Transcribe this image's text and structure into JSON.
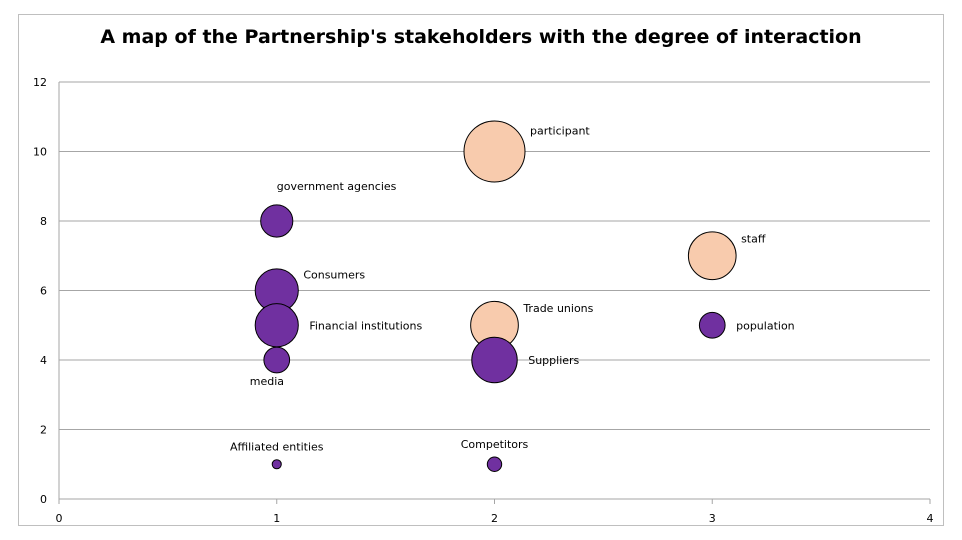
{
  "chart_data": {
    "type": "scatter",
    "variant": "bubble",
    "title": "A map of the Partnership's stakeholders with the degree of interaction",
    "xlabel": "",
    "ylabel": "",
    "xlim": [
      0,
      4
    ],
    "ylim": [
      0,
      12
    ],
    "x_ticks": [
      0,
      1,
      2,
      3,
      4
    ],
    "y_ticks": [
      0,
      2,
      4,
      6,
      8,
      10,
      12
    ],
    "grid": "horizontal",
    "legend": "none",
    "colors": {
      "purple": "#7030a0",
      "peach": "#f8cbad",
      "outline": "#000000",
      "gridline": "#a6a6a6"
    },
    "points": [
      {
        "label": "participant",
        "x": 2,
        "y": 10,
        "size": 9,
        "color": "peach",
        "label_pos": "upper-right"
      },
      {
        "label": "government agencies",
        "x": 1,
        "y": 8,
        "size": 2.5,
        "color": "purple",
        "label_pos": "above-right"
      },
      {
        "label": "staff",
        "x": 3,
        "y": 7,
        "size": 5.5,
        "color": "peach",
        "label_pos": "upper-right"
      },
      {
        "label": "Consumers",
        "x": 1,
        "y": 6,
        "size": 4.5,
        "color": "purple",
        "label_pos": "upper-right"
      },
      {
        "label": "Financial institutions",
        "x": 1,
        "y": 5,
        "size": 4.5,
        "color": "purple",
        "label_pos": "right"
      },
      {
        "label": "Trade unions",
        "x": 2,
        "y": 5,
        "size": 5.5,
        "color": "peach",
        "label_pos": "upper-right"
      },
      {
        "label": "population",
        "x": 3,
        "y": 5,
        "size": 1.6,
        "color": "purple",
        "label_pos": "right"
      },
      {
        "label": "media",
        "x": 1,
        "y": 4,
        "size": 1.6,
        "color": "purple",
        "label_pos": "below-left"
      },
      {
        "label": "Suppliers",
        "x": 2,
        "y": 4,
        "size": 5,
        "color": "purple",
        "label_pos": "right"
      },
      {
        "label": "Affiliated entities",
        "x": 1,
        "y": 1,
        "size": 0.2,
        "color": "purple",
        "label_pos": "above"
      },
      {
        "label": "Competitors",
        "x": 2,
        "y": 1,
        "size": 0.5,
        "color": "purple",
        "label_pos": "above"
      }
    ]
  }
}
